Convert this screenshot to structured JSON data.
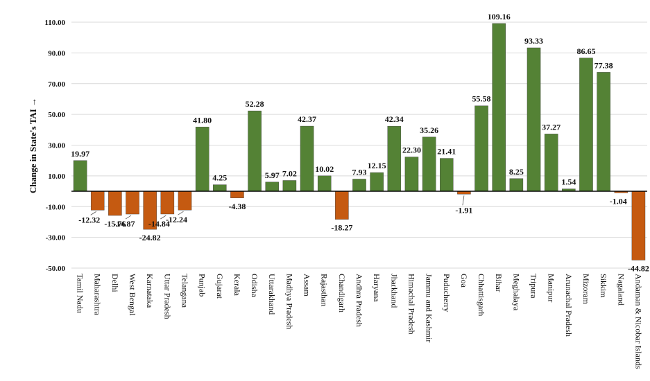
{
  "chart_data": {
    "type": "bar",
    "title": "",
    "xlabel": "",
    "ylabel": "Change in State's TAI →",
    "ylim": [
      -50,
      110
    ],
    "yticks": [
      110,
      90,
      70,
      50,
      30,
      10,
      -10,
      -30,
      -50
    ],
    "ytick_labels": [
      "110.00",
      "90.00",
      "70.00",
      "50.00",
      "30.00",
      "10.00",
      "-10.00",
      "-30.00",
      "-50.00"
    ],
    "grid": true,
    "colors": {
      "positive": "#548235",
      "negative": "#C55A11"
    },
    "categories": [
      "Tamil Nadu",
      "Maharashtra",
      "Delhi",
      "West Bengal",
      "Karnataka",
      "Uttar Pradesh",
      "Telangana",
      "Punjab",
      "Gujarat",
      "Kerala",
      "Odisha",
      "Uttarakhand",
      "Madhya Pradesh",
      "Assam",
      "Rajasthan",
      "Chandigarh",
      "Andhra Pradesh",
      "Haryana",
      "Jharkhand",
      "Himachal Pradesh",
      "Jammu and Kashmir",
      "Puducherry",
      "Goa",
      "Chhattisgarh",
      "Bihar",
      "Meghalaya",
      "Tripura",
      "Manipur",
      "Arunachal Pradesh",
      "Mizoram",
      "Sikkim",
      "Nagaland",
      "Andaman & Nicobar Islands"
    ],
    "values": [
      19.97,
      -12.32,
      -15.76,
      -14.87,
      -24.82,
      -14.84,
      -12.24,
      41.8,
      4.25,
      -4.38,
      52.28,
      5.97,
      7.02,
      42.37,
      10.02,
      -18.27,
      7.93,
      12.15,
      42.34,
      22.3,
      35.26,
      21.41,
      -1.91,
      55.58,
      109.16,
      8.25,
      93.33,
      37.27,
      1.54,
      86.65,
      77.38,
      -1.04,
      -44.82
    ],
    "value_labels": [
      "19.97",
      "-12.32",
      "-15.76",
      "-14.87",
      "-24.82",
      "-14.84",
      "-12.24",
      "41.80",
      "4.25",
      "-4.38",
      "52.28",
      "5.97",
      "7.02",
      "42.37",
      "10.02",
      "-18.27",
      "7.93",
      "12.15",
      "42.34",
      "22.30",
      "35.26",
      "21.41",
      "-1.91",
      "55.58",
      "109.16",
      "8.25",
      "93.33",
      "37.27",
      "1.54",
      "86.65",
      "77.38",
      "-1.04",
      "-44.82"
    ]
  }
}
